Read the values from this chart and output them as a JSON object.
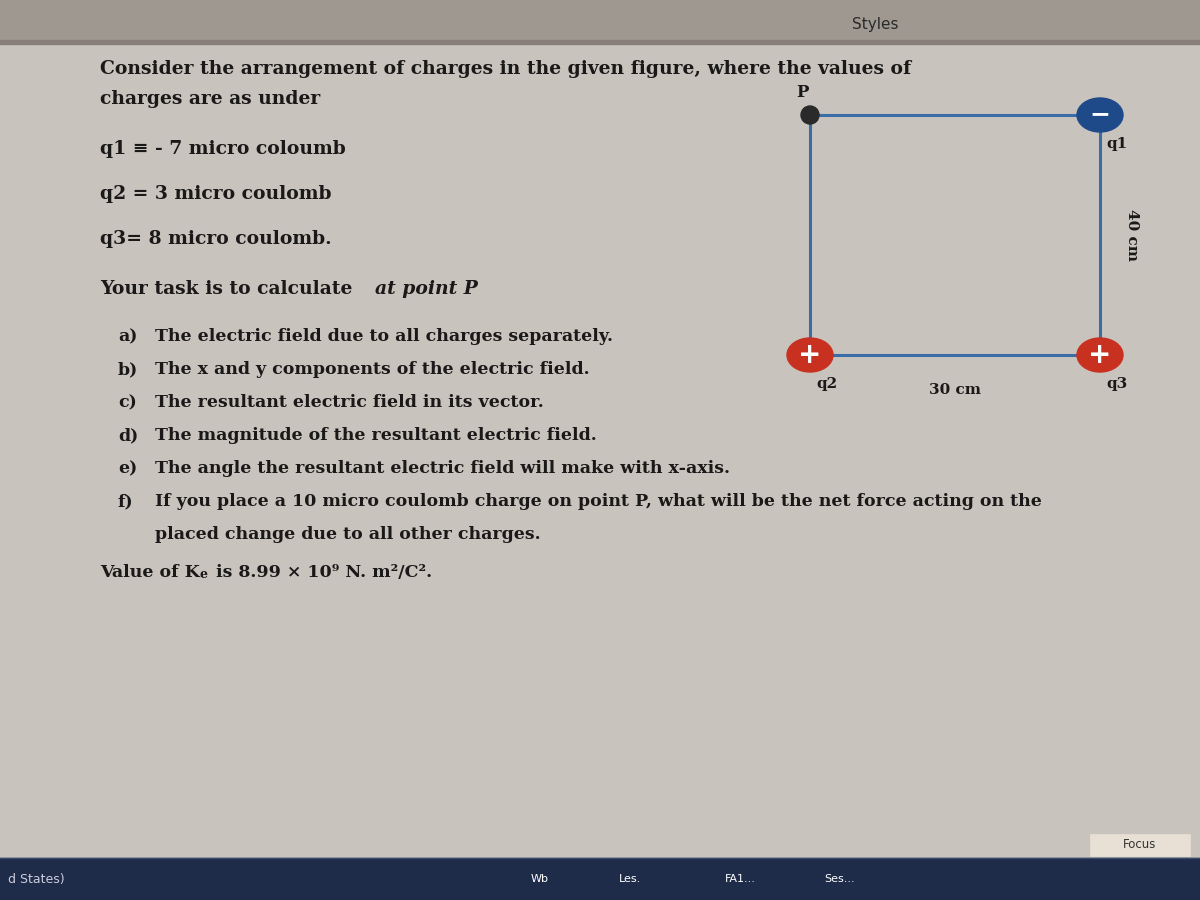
{
  "bg_color": "#c5bdb0",
  "bg_gradient_top": "#b8b5ae",
  "bg_gradient_mid": "#d0cdc5",
  "title_bar_color": "#a8a098",
  "title_text": "Styles",
  "bottom_bar_color": "#1e2c4a",
  "focus_text": "Focus",
  "states_text": "d States)",
  "wb_text": "Wb",
  "les_text": "Les.",
  "fa1_text": "FA1...",
  "ses_text": "Ses...",
  "diagram": {
    "rect_color": "#3a6da8",
    "P_color": "#2a2a2a",
    "q1_color": "#2a5aa8",
    "q2_color": "#cc3322",
    "q3_color": "#cc3322",
    "q1_symbol": "–",
    "q2_symbol": "+",
    "q3_symbol": "+"
  }
}
